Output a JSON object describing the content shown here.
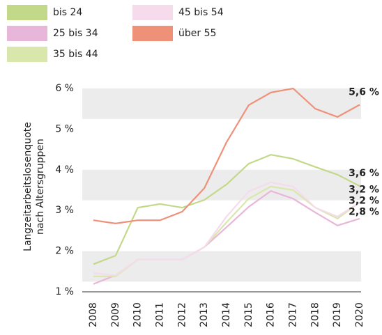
{
  "chart_data": {
    "type": "line",
    "ylabel": [
      "Langzeitarbeitslosenquote",
      "nach Altersgruppen"
    ],
    "categories": [
      "2008",
      "2009",
      "2010",
      "2011",
      "2012",
      "2013",
      "2014",
      "2015",
      "2016",
      "2017",
      "2018",
      "2019",
      "2020"
    ],
    "series": [
      {
        "name": "bis 24",
        "color": "#c3d98a",
        "values": [
          1.68,
          1.89,
          3.07,
          3.16,
          3.07,
          3.26,
          3.64,
          4.15,
          4.37,
          4.27,
          4.07,
          3.88,
          3.6
        ],
        "value_labels": [
          null,
          null,
          null,
          null,
          null,
          null,
          null,
          null,
          null,
          null,
          null,
          null,
          "3,6 %"
        ]
      },
      {
        "name": "25 bis 34",
        "color": "#e8b6d8",
        "values": [
          1.19,
          1.41,
          1.79,
          1.79,
          1.79,
          2.1,
          2.59,
          3.09,
          3.48,
          3.29,
          2.95,
          2.63,
          2.8
        ],
        "value_labels": [
          null,
          null,
          null,
          null,
          null,
          null,
          null,
          null,
          null,
          null,
          null,
          null,
          "2,8 %"
        ]
      },
      {
        "name": "35 bis 44",
        "color": "#d9e7ac",
        "values": [
          1.38,
          1.38,
          1.79,
          1.79,
          1.79,
          2.1,
          2.71,
          3.29,
          3.59,
          3.5,
          3.07,
          2.8,
          3.2
        ],
        "value_labels": [
          null,
          null,
          null,
          null,
          null,
          null,
          null,
          null,
          null,
          null,
          null,
          null,
          "3,2 %"
        ]
      },
      {
        "name": "45 bis 54",
        "color": "#f5dbec",
        "values": [
          1.46,
          1.41,
          1.79,
          1.79,
          1.79,
          2.1,
          2.85,
          3.47,
          3.69,
          3.59,
          3.07,
          2.85,
          3.2
        ],
        "value_labels": [
          null,
          null,
          null,
          null,
          null,
          null,
          null,
          null,
          null,
          null,
          null,
          null,
          "3,2 %"
        ]
      },
      {
        "name": "über 55",
        "color": "#ef9079",
        "values": [
          2.76,
          2.68,
          2.76,
          2.76,
          2.97,
          3.55,
          4.68,
          5.59,
          5.9,
          6.0,
          5.5,
          5.3,
          5.6
        ],
        "value_labels": [
          null,
          null,
          null,
          null,
          null,
          null,
          null,
          null,
          null,
          null,
          null,
          null,
          "5,6 %"
        ]
      }
    ],
    "ylim": [
      1,
      6
    ],
    "yticks": [
      {
        "value": 1,
        "label": "1 %"
      },
      {
        "value": 2,
        "label": "2 %"
      },
      {
        "value": 3,
        "label": "3 %"
      },
      {
        "value": 4,
        "label": "4 %"
      },
      {
        "value": 5,
        "label": "5 %"
      },
      {
        "value": 6,
        "label": "6 %"
      }
    ],
    "grid": "bands"
  }
}
